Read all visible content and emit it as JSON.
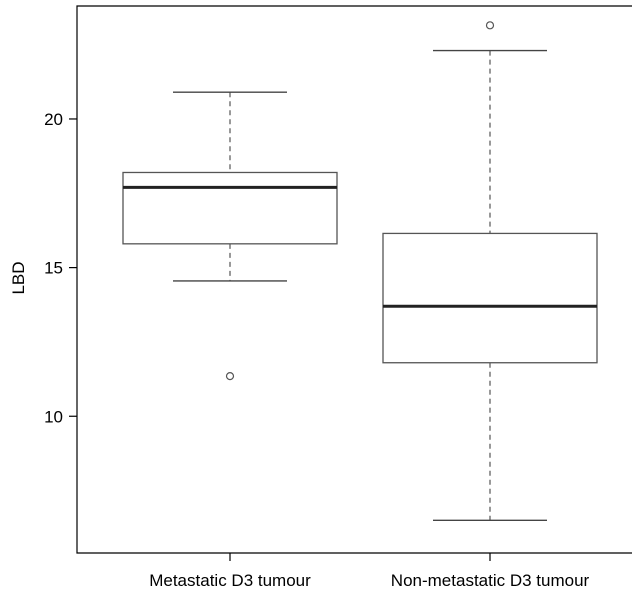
{
  "chart_data": {
    "type": "boxplot",
    "ylabel": "LBD",
    "ylim": [
      5.4,
      23.8
    ],
    "yticks": [
      10,
      15,
      20
    ],
    "grid": false,
    "categories": [
      "Metastatic D3 tumour",
      "Non-metastatic D3 tumour"
    ],
    "boxes": [
      {
        "category": "Metastatic D3 tumour",
        "whisker_low": 14.55,
        "q1": 15.8,
        "median": 17.7,
        "q3": 18.2,
        "whisker_high": 20.9,
        "outliers": [
          11.35
        ]
      },
      {
        "category": "Non-metastatic D3 tumour",
        "whisker_low": 6.5,
        "q1": 11.8,
        "median": 13.7,
        "q3": 16.15,
        "whisker_high": 22.3,
        "outliers": [
          23.15
        ]
      }
    ]
  }
}
